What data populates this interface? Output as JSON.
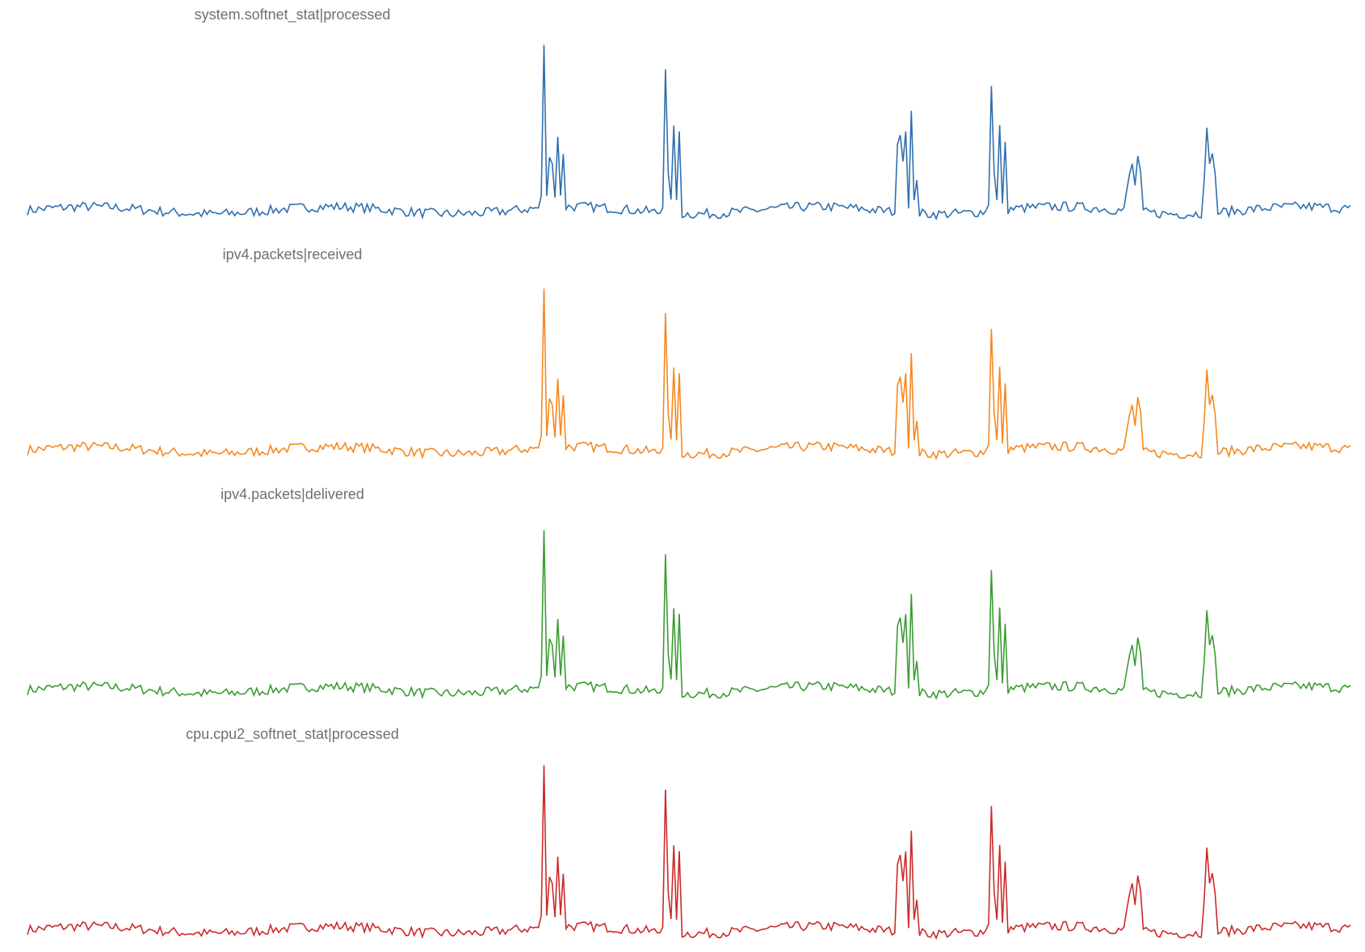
{
  "chart_data": {
    "type": "line",
    "layout": "small-multiples",
    "x_axis_visible": false,
    "y_axis_visible": false,
    "grid": false,
    "legend": "none",
    "panels": [
      {
        "title": "system.softnet_stat|processed",
        "color": "#2f6fae"
      },
      {
        "title": "ipv4.packets|received",
        "color": "#f5881f"
      },
      {
        "title": "ipv4.packets|delivered",
        "color": "#3b9c32"
      },
      {
        "title": "cpu.cpu2_softnet_stat|processed",
        "color": "#cc2a2a"
      }
    ],
    "baseline_noise": 0.06,
    "spike_shape": [
      {
        "center": 0.397,
        "heights": [
          0.05,
          0.9,
          0.05,
          0.3,
          0.25,
          0.05,
          0.4,
          0.05,
          0.3
        ]
      },
      {
        "center": 0.487,
        "heights": [
          0.05,
          0.8,
          0.2,
          0.05,
          0.5,
          0.05,
          0.45
        ]
      },
      {
        "center": 0.667,
        "heights": [
          0.35,
          0.45,
          0.3,
          0.45,
          0.05,
          0.55,
          0.05,
          0.2
        ]
      },
      {
        "center": 0.732,
        "heights": [
          0.05,
          0.7,
          0.2,
          0.05,
          0.45,
          0.05,
          0.35
        ]
      },
      {
        "center": 0.838,
        "heights": [
          0.1,
          0.2,
          0.25,
          0.15,
          0.3,
          0.2
        ]
      },
      {
        "center": 0.893,
        "heights": [
          0.2,
          0.45,
          0.25,
          0.35,
          0.2
        ]
      }
    ]
  }
}
